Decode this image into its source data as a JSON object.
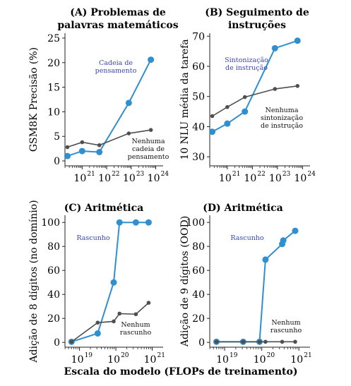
{
  "colors": {
    "blue": "#2F8FCF",
    "gray": "#4F4F4F",
    "annotation_blue": "#3A45B0",
    "axis": "#222222"
  },
  "x_axis_label": "Escala do modelo (FLOPs de treinamento)",
  "chart_data": [
    {
      "id": "A",
      "type": "line",
      "title_lines": [
        "(A) Problemas de",
        "palavras matemáticos"
      ],
      "ylabel": "GSM8K Precisão (%)",
      "xscale": "log",
      "xlim_exp": [
        20.3,
        24.3
      ],
      "ylim": [
        -1,
        26
      ],
      "x_ticks": [
        {
          "base": "10",
          "exp": "21",
          "value": 21
        },
        {
          "base": "10",
          "exp": "22",
          "value": 22
        },
        {
          "base": "10",
          "exp": "23",
          "value": 23
        },
        {
          "base": "10",
          "exp": "24",
          "value": 24
        }
      ],
      "y_ticks": [
        0,
        5,
        10,
        15,
        20,
        25
      ],
      "series": [
        {
          "label_lines": [
            "Cadeia de",
            "pensamento"
          ],
          "color_key": "blue",
          "x_exp": [
            20.4,
            21.0,
            21.7,
            22.9,
            23.8
          ],
          "y": [
            1.0,
            2.0,
            1.8,
            11.8,
            20.6
          ]
        },
        {
          "label_lines": [
            "Nenhuma",
            "cadeia de",
            "pensamento"
          ],
          "color_key": "gray",
          "x_exp": [
            20.4,
            21.0,
            21.7,
            22.9,
            23.8
          ],
          "y": [
            2.8,
            3.8,
            3.2,
            5.6,
            6.3
          ]
        }
      ]
    },
    {
      "id": "B",
      "type": "line",
      "title_lines": [
        "(B) Seguimento de",
        "instruções"
      ],
      "ylabel": "10 NLU média da tarefa",
      "xscale": "log",
      "xlim_exp": [
        20.3,
        24.3
      ],
      "ylim": [
        27,
        71
      ],
      "x_ticks": [
        {
          "base": "10",
          "exp": "21",
          "value": 21
        },
        {
          "base": "10",
          "exp": "22",
          "value": 22
        },
        {
          "base": "10",
          "exp": "23",
          "value": 23
        },
        {
          "base": "10",
          "exp": "24",
          "value": 24
        }
      ],
      "y_ticks": [
        30,
        40,
        50,
        60,
        70
      ],
      "series": [
        {
          "label_lines": [
            "Sintonização",
            "de instrução"
          ],
          "color_key": "blue",
          "x_exp": [
            20.4,
            21.0,
            21.7,
            22.9,
            23.8
          ],
          "y": [
            38.3,
            41.0,
            45.0,
            66.0,
            68.5
          ]
        },
        {
          "label_lines": [
            "Nenhuma",
            "sintonização",
            "de instrução"
          ],
          "color_key": "gray",
          "x_exp": [
            20.4,
            21.0,
            21.7,
            22.9,
            23.8
          ],
          "y": [
            43.5,
            46.5,
            49.8,
            52.5,
            53.5
          ]
        }
      ]
    },
    {
      "id": "C",
      "type": "line",
      "title_lines": [
        "(C) Aritmética"
      ],
      "ylabel": "Adição de 8 dígitos (no domínio)",
      "xscale": "log",
      "xlim_exp": [
        18.6,
        21.3
      ],
      "ylim": [
        -4,
        106
      ],
      "x_ticks": [
        {
          "base": "10",
          "exp": "19",
          "value": 19
        },
        {
          "base": "10",
          "exp": "20",
          "value": 20
        },
        {
          "base": "10",
          "exp": "21",
          "value": 21
        }
      ],
      "y_ticks": [
        0,
        20,
        40,
        60,
        80,
        100
      ],
      "series": [
        {
          "label_lines": [
            "Rascunho"
          ],
          "color_key": "blue",
          "x_exp": [
            18.78,
            19.5,
            19.94,
            20.1,
            20.55,
            20.9
          ],
          "y": [
            0.5,
            7.5,
            50,
            100,
            100,
            100
          ]
        },
        {
          "label_lines": [
            "Nenhum",
            "rascunho"
          ],
          "color_key": "gray",
          "x_exp": [
            18.78,
            19.5,
            19.94,
            20.1,
            20.55,
            20.9
          ],
          "y": [
            0.5,
            16.5,
            17.5,
            24,
            23.5,
            33
          ]
        }
      ]
    },
    {
      "id": "D",
      "type": "line",
      "title_lines": [
        "(D) Aritmética"
      ],
      "ylabel": "Adição de 9 dígitos (OOD)",
      "xscale": "log",
      "xlim_exp": [
        18.6,
        21.3
      ],
      "ylim": [
        -4,
        106
      ],
      "x_ticks": [
        {
          "base": "10",
          "exp": "19",
          "value": 19
        },
        {
          "base": "10",
          "exp": "20",
          "value": 20
        },
        {
          "base": "10",
          "exp": "21",
          "value": 21
        }
      ],
      "y_ticks": [
        0,
        20,
        40,
        60,
        80,
        100
      ],
      "series": [
        {
          "label_lines": [
            "Rascunho"
          ],
          "color_key": "blue",
          "x_exp": [
            18.78,
            19.5,
            19.94,
            20.1,
            20.55,
            20.58,
            20.9
          ],
          "y": [
            0.5,
            0.5,
            0.5,
            69,
            82,
            85,
            93
          ]
        },
        {
          "label_lines": [
            "Nenhum",
            "rascunho"
          ],
          "color_key": "gray",
          "x_exp": [
            18.78,
            19.5,
            19.94,
            20.1,
            20.55,
            20.9
          ],
          "y": [
            0.5,
            0.5,
            0.5,
            0.5,
            0.5,
            0.5
          ]
        }
      ]
    }
  ]
}
